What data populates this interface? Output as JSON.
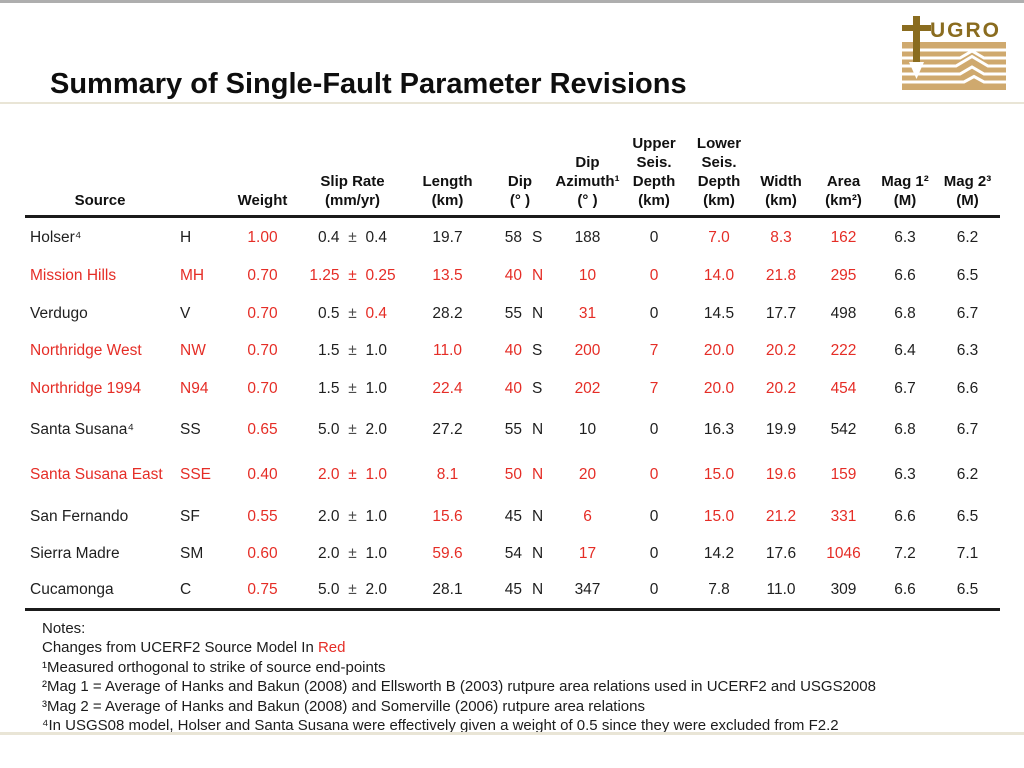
{
  "title": "Summary of Single-Fault Parameter Revisions",
  "logo": {
    "wordmark": "UGRO"
  },
  "colors": {
    "accent_red": "#e52d26",
    "rule_beige": "#e9e5d6",
    "logo_tan": "#cfa96e",
    "logo_gold": "#8a6c1f"
  },
  "table": {
    "headers": [
      {
        "name": "source",
        "lines": [
          "Source"
        ]
      },
      {
        "name": "abbr",
        "lines": [
          ""
        ]
      },
      {
        "name": "weight",
        "lines": [
          "Weight"
        ]
      },
      {
        "name": "slip-rate",
        "lines": [
          "Slip Rate",
          "(mm/yr)"
        ]
      },
      {
        "name": "length",
        "lines": [
          "Length",
          "(km)"
        ]
      },
      {
        "name": "dip",
        "lines": [
          "Dip",
          "(° )"
        ]
      },
      {
        "name": "dip-azimuth",
        "lines": [
          "Dip",
          "Azimuth¹",
          "(° )"
        ]
      },
      {
        "name": "upper-seis-depth",
        "lines": [
          "Upper",
          "Seis.",
          "Depth",
          "(km)"
        ]
      },
      {
        "name": "lower-seis-depth",
        "lines": [
          "Lower",
          "Seis.",
          "Depth",
          "(km)"
        ]
      },
      {
        "name": "width",
        "lines": [
          "Width",
          "(km)"
        ]
      },
      {
        "name": "area",
        "lines": [
          "Area",
          "(km²)"
        ]
      },
      {
        "name": "mag1",
        "lines": [
          "Mag 1²",
          "(M)"
        ]
      },
      {
        "name": "mag2",
        "lines": [
          "Mag 2³",
          "(M)"
        ]
      }
    ],
    "rows": [
      {
        "source": [
          "Holser⁴",
          0
        ],
        "abbr": [
          "H",
          0
        ],
        "weight": [
          "1.00",
          1
        ],
        "slip": [
          [
            "0.4",
            0
          ],
          [
            "±",
            0
          ],
          [
            "0.4",
            0
          ]
        ],
        "length": [
          "19.7",
          0
        ],
        "dip": [
          [
            "58",
            0
          ],
          [
            "S",
            0
          ]
        ],
        "azimuth": [
          "188",
          0
        ],
        "upper": [
          "0",
          0
        ],
        "lower": [
          "7.0",
          1
        ],
        "width": [
          "8.3",
          1
        ],
        "area": [
          "162",
          1
        ],
        "mag1": [
          "6.3",
          0
        ],
        "mag2": [
          "6.2",
          0
        ]
      },
      {
        "source": [
          "Mission Hills",
          1
        ],
        "abbr": [
          "MH",
          1
        ],
        "weight": [
          "0.70",
          1
        ],
        "slip": [
          [
            "1.25",
            1
          ],
          [
            "±",
            1
          ],
          [
            "0.25",
            1
          ]
        ],
        "length": [
          "13.5",
          1
        ],
        "dip": [
          [
            "40",
            1
          ],
          [
            "N",
            1
          ]
        ],
        "azimuth": [
          "10",
          1
        ],
        "upper": [
          "0",
          1
        ],
        "lower": [
          "14.0",
          1
        ],
        "width": [
          "21.8",
          1
        ],
        "area": [
          "295",
          1
        ],
        "mag1": [
          "6.6",
          0
        ],
        "mag2": [
          "6.5",
          0
        ]
      },
      {
        "source": [
          "Verdugo",
          0
        ],
        "abbr": [
          "V",
          0
        ],
        "weight": [
          "0.70",
          1
        ],
        "slip": [
          [
            "0.5",
            0
          ],
          [
            "±",
            0
          ],
          [
            "0.4",
            1
          ]
        ],
        "length": [
          "28.2",
          0
        ],
        "dip": [
          [
            "55",
            0
          ],
          [
            "N",
            0
          ]
        ],
        "azimuth": [
          "31",
          1
        ],
        "upper": [
          "0",
          0
        ],
        "lower": [
          "14.5",
          0
        ],
        "width": [
          "17.7",
          0
        ],
        "area": [
          "498",
          0
        ],
        "mag1": [
          "6.8",
          0
        ],
        "mag2": [
          "6.7",
          0
        ]
      },
      {
        "source": [
          "Northridge West",
          1
        ],
        "abbr": [
          "NW",
          1
        ],
        "weight": [
          "0.70",
          1
        ],
        "slip": [
          [
            "1.5",
            0
          ],
          [
            "±",
            0
          ],
          [
            "1.0",
            0
          ]
        ],
        "length": [
          "11.0",
          1
        ],
        "dip": [
          [
            "40",
            1
          ],
          [
            "S",
            0
          ]
        ],
        "azimuth": [
          "200",
          1
        ],
        "upper": [
          "7",
          1
        ],
        "lower": [
          "20.0",
          1
        ],
        "width": [
          "20.2",
          1
        ],
        "area": [
          "222",
          1
        ],
        "mag1": [
          "6.4",
          0
        ],
        "mag2": [
          "6.3",
          0
        ]
      },
      {
        "source": [
          "Northridge 1994",
          1
        ],
        "abbr": [
          "N94",
          1
        ],
        "weight": [
          "0.70",
          1
        ],
        "slip": [
          [
            "1.5",
            0
          ],
          [
            "±",
            0
          ],
          [
            "1.0",
            0
          ]
        ],
        "length": [
          "22.4",
          1
        ],
        "dip": [
          [
            "40",
            1
          ],
          [
            "S",
            0
          ]
        ],
        "azimuth": [
          "202",
          1
        ],
        "upper": [
          "7",
          1
        ],
        "lower": [
          "20.0",
          1
        ],
        "width": [
          "20.2",
          1
        ],
        "area": [
          "454",
          1
        ],
        "mag1": [
          "6.7",
          0
        ],
        "mag2": [
          "6.6",
          0
        ]
      },
      {
        "source": [
          "Santa Susana⁴",
          0
        ],
        "abbr": [
          "SS",
          0
        ],
        "weight": [
          "0.65",
          1
        ],
        "slip": [
          [
            "5.0",
            0
          ],
          [
            "±",
            0
          ],
          [
            "2.0",
            0
          ]
        ],
        "length": [
          "27.2",
          0
        ],
        "dip": [
          [
            "55",
            0
          ],
          [
            "N",
            0
          ]
        ],
        "azimuth": [
          "10",
          0
        ],
        "upper": [
          "0",
          0
        ],
        "lower": [
          "16.3",
          0
        ],
        "width": [
          "19.9",
          0
        ],
        "area": [
          "542",
          0
        ],
        "mag1": [
          "6.8",
          0
        ],
        "mag2": [
          "6.7",
          0
        ]
      },
      {
        "source": [
          "Santa Susana East",
          1
        ],
        "abbr": [
          "SSE",
          1
        ],
        "weight": [
          "0.40",
          1
        ],
        "slip": [
          [
            "2.0",
            1
          ],
          [
            "±",
            1
          ],
          [
            "1.0",
            1
          ]
        ],
        "length": [
          "8.1",
          1
        ],
        "dip": [
          [
            "50",
            1
          ],
          [
            "N",
            1
          ]
        ],
        "azimuth": [
          "20",
          1
        ],
        "upper": [
          "0",
          1
        ],
        "lower": [
          "15.0",
          1
        ],
        "width": [
          "19.6",
          1
        ],
        "area": [
          "159",
          1
        ],
        "mag1": [
          "6.3",
          0
        ],
        "mag2": [
          "6.2",
          0
        ]
      },
      {
        "source": [
          "San Fernando",
          0
        ],
        "abbr": [
          "SF",
          0
        ],
        "weight": [
          "0.55",
          1
        ],
        "slip": [
          [
            "2.0",
            0
          ],
          [
            "±",
            0
          ],
          [
            "1.0",
            0
          ]
        ],
        "length": [
          "15.6",
          1
        ],
        "dip": [
          [
            "45",
            0
          ],
          [
            "N",
            0
          ]
        ],
        "azimuth": [
          "6",
          1
        ],
        "upper": [
          "0",
          0
        ],
        "lower": [
          "15.0",
          1
        ],
        "width": [
          "21.2",
          1
        ],
        "area": [
          "331",
          1
        ],
        "mag1": [
          "6.6",
          0
        ],
        "mag2": [
          "6.5",
          0
        ]
      },
      {
        "source": [
          "Sierra Madre",
          0
        ],
        "abbr": [
          "SM",
          0
        ],
        "weight": [
          "0.60",
          1
        ],
        "slip": [
          [
            "2.0",
            0
          ],
          [
            "±",
            0
          ],
          [
            "1.0",
            0
          ]
        ],
        "length": [
          "59.6",
          1
        ],
        "dip": [
          [
            "54",
            0
          ],
          [
            "N",
            0
          ]
        ],
        "azimuth": [
          "17",
          1
        ],
        "upper": [
          "0",
          0
        ],
        "lower": [
          "14.2",
          0
        ],
        "width": [
          "17.6",
          0
        ],
        "area": [
          "1046",
          1
        ],
        "mag1": [
          "7.2",
          0
        ],
        "mag2": [
          "7.1",
          0
        ]
      },
      {
        "source": [
          "Cucamonga",
          0
        ],
        "abbr": [
          "C",
          0
        ],
        "weight": [
          "0.75",
          1
        ],
        "slip": [
          [
            "5.0",
            0
          ],
          [
            "±",
            0
          ],
          [
            "2.0",
            0
          ]
        ],
        "length": [
          "28.1",
          0
        ],
        "dip": [
          [
            "45",
            0
          ],
          [
            "N",
            0
          ]
        ],
        "azimuth": [
          "347",
          0
        ],
        "upper": [
          "0",
          0
        ],
        "lower": [
          "7.8",
          0
        ],
        "width": [
          "11.0",
          0
        ],
        "area": [
          "309",
          0
        ],
        "mag1": [
          "6.6",
          0
        ],
        "mag2": [
          "6.5",
          0
        ]
      }
    ]
  },
  "notes": {
    "title": "Notes:",
    "line1_prefix": "Changes from UCERF2 Source Model In ",
    "line1_red": "Red",
    "lines": [
      "¹Measured orthogonal to strike of source end-points",
      "²Mag 1 = Average of Hanks and Bakun (2008) and Ellsworth B (2003) rutpure area relations used in UCERF2 and USGS2008",
      "³Mag 2 = Average of Hanks and Bakun (2008) and Somerville (2006) rutpure area relations",
      "⁴In USGS08 model, Holser and Santa Susana were effectively given a weight of 0.5 since they were excluded from F2.2"
    ]
  }
}
